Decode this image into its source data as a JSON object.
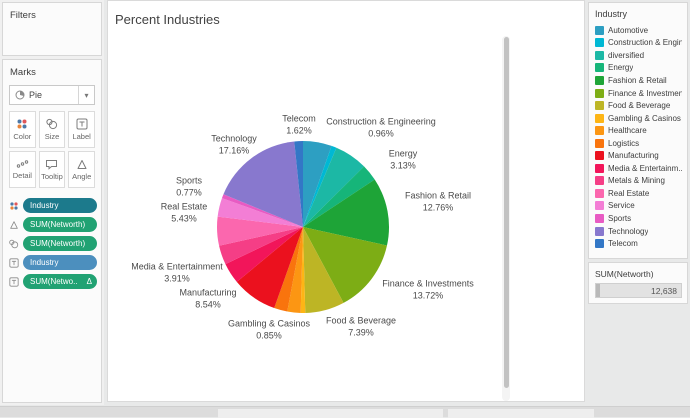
{
  "filters_panel": {
    "title": "Filters"
  },
  "marks_panel": {
    "title": "Marks",
    "mark_type_selector": {
      "value": "Pie",
      "caret": "▾"
    },
    "buttons": [
      {
        "label": "Color"
      },
      {
        "label": "Size"
      },
      {
        "label": "Label"
      },
      {
        "label": "Detail"
      },
      {
        "label": "Tooltip"
      },
      {
        "label": "Angle"
      }
    ],
    "pills": [
      {
        "label": "Industry",
        "shelf": "color",
        "color": "#1C7A8C",
        "badge": ""
      },
      {
        "label": "SUM(Networth)",
        "shelf": "angle",
        "color": "#21A273",
        "badge": ""
      },
      {
        "label": "SUM(Networth)",
        "shelf": "size",
        "color": "#21A273",
        "badge": ""
      },
      {
        "label": "Industry",
        "shelf": "label",
        "color": "#4C8FBE",
        "badge": ""
      },
      {
        "label": "SUM(Netwo..",
        "shelf": "label",
        "color": "#21A273",
        "badge": "Δ"
      }
    ]
  },
  "sheet": {
    "title": "Percent Industries"
  },
  "chart_data": {
    "type": "pie",
    "title": "Percent Industries",
    "legend_position": "right",
    "angle_field": "SUM(Networth)",
    "start_angle": "12 o'clock, clockwise, alphabetical",
    "slices": [
      {
        "name": "Automotive",
        "pct": 5.39,
        "pct_label": "",
        "labeled": false,
        "color": "#2D9FC2"
      },
      {
        "name": "Construction & Engineering",
        "pct": 0.96,
        "pct_label": "0.96%",
        "labeled": true,
        "color": "#00B8D4"
      },
      {
        "name": "diversified",
        "pct": 6.2,
        "pct_label": "",
        "labeled": false,
        "color": "#1CB8A5"
      },
      {
        "name": "Energy",
        "pct": 3.13,
        "pct_label": "3.13%",
        "labeled": true,
        "color": "#16B579"
      },
      {
        "name": "Fashion & Retail",
        "pct": 12.76,
        "pct_label": "12.76%",
        "labeled": true,
        "color": "#1EA437"
      },
      {
        "name": "Finance & Investments",
        "pct": 13.72,
        "pct_label": "13.72%",
        "labeled": true,
        "color": "#7DAD15"
      },
      {
        "name": "Food & Beverage",
        "pct": 7.39,
        "pct_label": "7.39%",
        "labeled": true,
        "color": "#BDB525"
      },
      {
        "name": "Gambling & Casinos",
        "pct": 0.85,
        "pct_label": "0.85%",
        "labeled": true,
        "color": "#FDB515"
      },
      {
        "name": "Healthcare",
        "pct": 2.5,
        "pct_label": "",
        "labeled": false,
        "color": "#FC9613"
      },
      {
        "name": "Logistics",
        "pct": 2.5,
        "pct_label": "",
        "labeled": false,
        "color": "#F9740D"
      },
      {
        "name": "Manufacturing",
        "pct": 8.54,
        "pct_label": "8.54%",
        "labeled": true,
        "color": "#EB111E"
      },
      {
        "name": "Media & Entertainment",
        "pct": 3.91,
        "pct_label": "3.91%",
        "labeled": true,
        "color": "#F2155A"
      },
      {
        "name": "Metals & Mining",
        "pct": 3.6,
        "pct_label": "",
        "labeled": false,
        "color": "#F53E86"
      },
      {
        "name": "Real Estate",
        "pct": 5.43,
        "pct_label": "5.43%",
        "labeled": true,
        "color": "#FB67AE"
      },
      {
        "name": "Service",
        "pct": 3.51,
        "pct_label": "",
        "labeled": false,
        "color": "#F37ED5"
      },
      {
        "name": "Sports",
        "pct": 0.77,
        "pct_label": "0.77%",
        "labeled": true,
        "color": "#E85BC3"
      },
      {
        "name": "Technology",
        "pct": 17.16,
        "pct_label": "17.16%",
        "labeled": true,
        "color": "#8878CE"
      },
      {
        "name": "Telecom",
        "pct": 1.62,
        "pct_label": "1.62%",
        "labeled": true,
        "color": "#3377C6"
      }
    ]
  },
  "legend": {
    "title": "Industry",
    "items": [
      {
        "label": "Automotive",
        "color": "#2D9FC2"
      },
      {
        "label": "Construction & Engin..",
        "color": "#00B8D4"
      },
      {
        "label": "diversified",
        "color": "#1CB8A5"
      },
      {
        "label": "Energy",
        "color": "#16B579"
      },
      {
        "label": "Fashion & Retail",
        "color": "#1EA437"
      },
      {
        "label": "Finance & Investmen..",
        "color": "#7DAD15"
      },
      {
        "label": "Food & Beverage",
        "color": "#BDB525"
      },
      {
        "label": "Gambling & Casinos",
        "color": "#FDB515"
      },
      {
        "label": "Healthcare",
        "color": "#FC9613"
      },
      {
        "label": "Logistics",
        "color": "#F9740D"
      },
      {
        "label": "Manufacturing",
        "color": "#EB111E"
      },
      {
        "label": "Media & Entertainm..",
        "color": "#F2155A"
      },
      {
        "label": "Metals & Mining",
        "color": "#F53E86"
      },
      {
        "label": "Real Estate",
        "color": "#FB67AE"
      },
      {
        "label": "Service",
        "color": "#F37ED5"
      },
      {
        "label": "Sports",
        "color": "#E85BC3"
      },
      {
        "label": "Technology",
        "color": "#8878CE"
      },
      {
        "label": "Telecom",
        "color": "#3377C6"
      }
    ]
  },
  "networth_card": {
    "title": "SUM(Networth)",
    "value": "12,638"
  }
}
